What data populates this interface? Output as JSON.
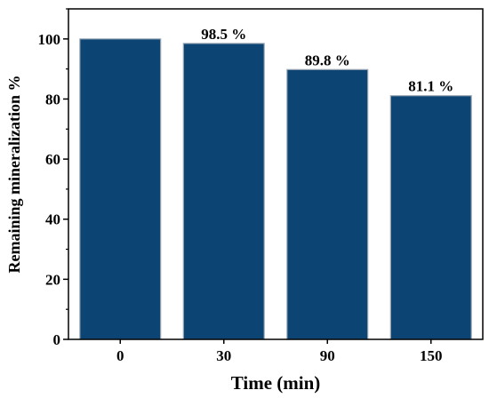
{
  "chart_data": {
    "type": "bar",
    "categories": [
      "0",
      "30",
      "90",
      "150"
    ],
    "values": [
      100,
      98.5,
      89.8,
      81.1
    ],
    "data_labels": [
      "",
      "98.5 %",
      "89.8 %",
      "81.1 %"
    ],
    "xlabel": "Time (min)",
    "ylabel": "Remaining mineralization %",
    "ylim": [
      0,
      110
    ],
    "yticks": [
      "0",
      "20",
      "40",
      "60",
      "80",
      "100"
    ],
    "bar_color": "#0c4574",
    "grid": false
  }
}
